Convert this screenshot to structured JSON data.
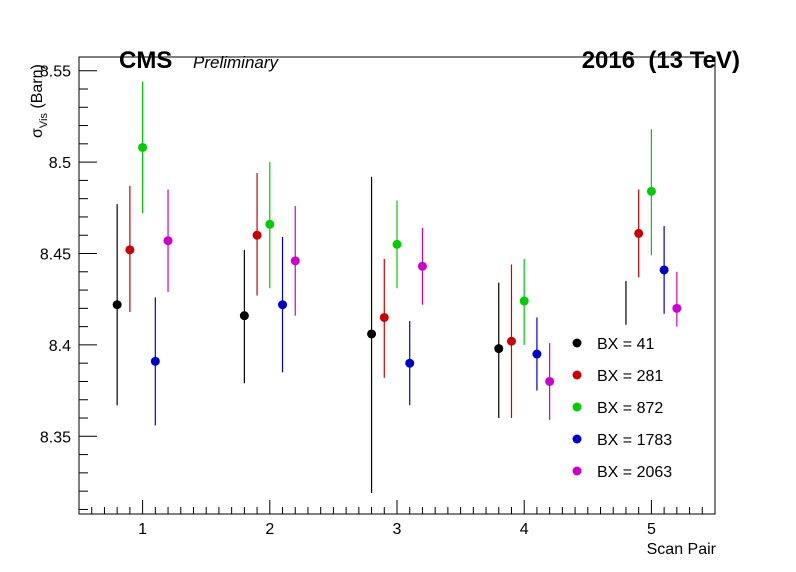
{
  "header": {
    "cms": "CMS",
    "preliminary": "Preliminary",
    "energy": "2016  (13 TeV)"
  },
  "chart_data": {
    "type": "scatter",
    "xlabel": "Scan Pair",
    "ylabel_main": "σ",
    "ylabel_sub": "Vis",
    "ylabel_unit": " (Barn)",
    "xlim": [
      0.5,
      5.5
    ],
    "ylim": [
      8.3075,
      8.5575
    ],
    "x_ticks": [
      1,
      2,
      3,
      4,
      5
    ],
    "x_tick_labels": [
      "1",
      "2",
      "3",
      "4",
      "5"
    ],
    "y_ticks": [
      8.35,
      8.4,
      8.45,
      8.5,
      8.55
    ],
    "y_tick_labels": [
      "8.35",
      "8.4",
      "8.45",
      "8.5",
      "8.55"
    ],
    "grid": false,
    "legend_position": "bottom-right",
    "offsets": [
      -0.2,
      -0.1,
      0.0,
      0.1,
      0.2
    ],
    "series": [
      {
        "name": "BX = 41",
        "color": "#000000",
        "x": [
          1,
          2,
          3,
          4,
          5
        ],
        "y": [
          8.422,
          8.416,
          8.406,
          8.398,
          null
        ],
        "err_low": [
          8.367,
          8.379,
          8.319,
          8.36,
          8.411
        ],
        "err_high": [
          8.477,
          8.452,
          8.492,
          8.434,
          8.435
        ]
      },
      {
        "name": "BX = 281",
        "color": "#cc0000",
        "x": [
          1,
          2,
          3,
          4,
          5
        ],
        "y": [
          8.452,
          8.46,
          8.415,
          8.402,
          8.461
        ],
        "err_low": [
          8.418,
          8.427,
          8.382,
          8.36,
          8.437
        ],
        "err_high": [
          8.487,
          8.494,
          8.447,
          8.444,
          8.485
        ]
      },
      {
        "name": "BX = 872",
        "color": "#00cc00",
        "x": [
          1,
          2,
          3,
          4,
          5
        ],
        "y": [
          8.508,
          8.466,
          8.455,
          8.424,
          8.484
        ],
        "err_low": [
          8.472,
          8.431,
          8.431,
          8.4,
          8.449
        ],
        "err_high": [
          8.544,
          8.5,
          8.479,
          8.447,
          8.518
        ]
      },
      {
        "name": "BX = 1783",
        "color": "#0000cc",
        "x": [
          1,
          2,
          3,
          4,
          5
        ],
        "y": [
          8.391,
          8.422,
          8.39,
          8.395,
          8.441
        ],
        "err_low": [
          8.356,
          8.385,
          8.367,
          8.375,
          8.417
        ],
        "err_high": [
          8.426,
          8.459,
          8.413,
          8.415,
          8.465
        ]
      },
      {
        "name": "BX = 2063",
        "color": "#cc00cc",
        "x": [
          1,
          2,
          3,
          4,
          5
        ],
        "y": [
          8.457,
          8.446,
          8.443,
          8.38,
          8.42
        ],
        "err_low": [
          8.429,
          8.416,
          8.422,
          8.359,
          8.41
        ],
        "err_high": [
          8.485,
          8.476,
          8.464,
          8.401,
          8.44
        ]
      }
    ]
  }
}
